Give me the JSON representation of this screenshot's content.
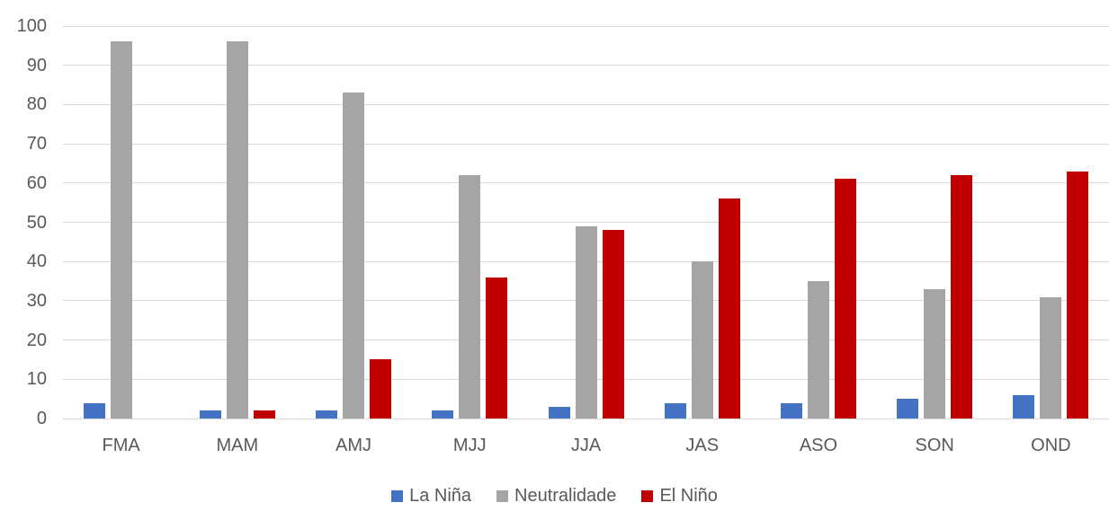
{
  "chart_data": {
    "type": "bar",
    "title": "",
    "xlabel": "",
    "ylabel": "",
    "categories": [
      "FMA",
      "MAM",
      "AMJ",
      "MJJ",
      "JJA",
      "JAS",
      "ASO",
      "SON",
      "OND"
    ],
    "series": [
      {
        "name": "La Niña",
        "color": "#4472C4",
        "values": [
          4,
          2,
          2,
          2,
          3,
          4,
          4,
          5,
          6
        ]
      },
      {
        "name": "Neutralidade",
        "color": "#A5A5A5",
        "values": [
          96,
          96,
          83,
          62,
          49,
          40,
          35,
          33,
          31
        ]
      },
      {
        "name": "El Niño",
        "color": "#C00000",
        "values": [
          0,
          2,
          15,
          36,
          48,
          56,
          61,
          62,
          63
        ]
      }
    ],
    "ylim": [
      0,
      100
    ],
    "yticks": [
      0,
      10,
      20,
      30,
      40,
      50,
      60,
      70,
      80,
      90,
      100
    ],
    "grid": true,
    "legend_position": "bottom"
  },
  "style": {
    "gridline_color": "#D9D9D9",
    "axis_text_color": "#595959",
    "background": "#FFFFFF"
  }
}
